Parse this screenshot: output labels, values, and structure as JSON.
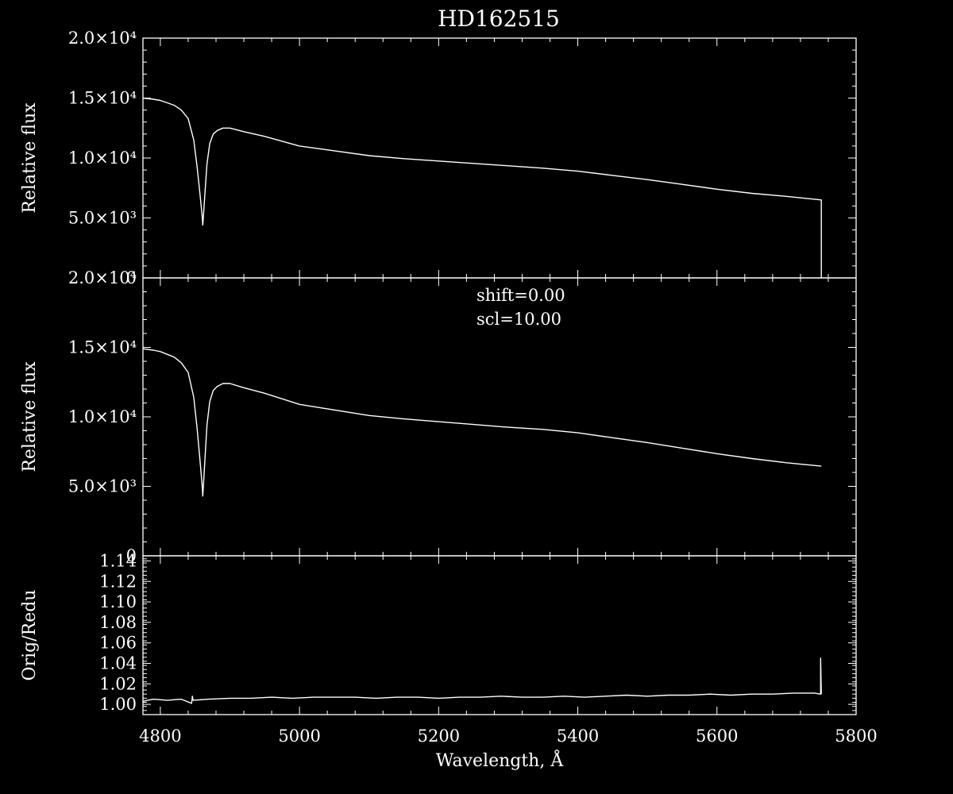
{
  "colors": {
    "background": "#000000",
    "foreground": "#ffffff"
  },
  "chart_data": [
    {
      "type": "line",
      "panel": "top",
      "title": "HD162515",
      "ylabel": "Relative flux",
      "xlim": [
        4775,
        5800
      ],
      "ylim": [
        0,
        20000
      ],
      "yticks": [
        {
          "value": 0,
          "label": "0"
        },
        {
          "value": 5000,
          "label": "5.0×10³"
        },
        {
          "value": 10000,
          "label": "1.0×10⁴"
        },
        {
          "value": 15000,
          "label": "1.5×10⁴"
        },
        {
          "value": 20000,
          "label": "2.0×10⁴"
        }
      ],
      "grid": false,
      "series": [
        {
          "x": [
            4775,
            4790,
            4800,
            4810,
            4820,
            4830,
            4840,
            4848,
            4853,
            4857,
            4860,
            4861,
            4862,
            4864,
            4867,
            4871,
            4876,
            4882,
            4890,
            4900,
            4920,
            4950,
            5000,
            5050,
            5100,
            5150,
            5200,
            5250,
            5300,
            5350,
            5400,
            5450,
            5500,
            5550,
            5600,
            5650,
            5700,
            5750,
            5750
          ],
          "y": [
            15000,
            14900,
            14800,
            14600,
            14400,
            14000,
            13300,
            11500,
            9200,
            7000,
            5200,
            4400,
            5200,
            7000,
            9500,
            11200,
            12000,
            12300,
            12500,
            12500,
            12200,
            11800,
            11000,
            10600,
            10200,
            9950,
            9750,
            9550,
            9350,
            9150,
            8900,
            8550,
            8200,
            7800,
            7400,
            7050,
            6800,
            6500,
            0
          ]
        }
      ]
    },
    {
      "type": "line",
      "panel": "middle",
      "ylabel": "Relative flux",
      "xlim": [
        4775,
        5800
      ],
      "ylim": [
        0,
        20000
      ],
      "yticks": [
        {
          "value": 0,
          "label": "0"
        },
        {
          "value": 5000,
          "label": "5.0×10³"
        },
        {
          "value": 10000,
          "label": "1.0×10⁴"
        },
        {
          "value": 15000,
          "label": "1.5×10⁴"
        },
        {
          "value": 20000,
          "label": "2.0×10⁴"
        }
      ],
      "annotations": [
        "shift=0.00",
        "scl=10.00"
      ],
      "grid": false,
      "series": [
        {
          "x": [
            4775,
            4790,
            4800,
            4810,
            4820,
            4830,
            4840,
            4848,
            4853,
            4857,
            4860,
            4861,
            4862,
            4864,
            4867,
            4871,
            4876,
            4882,
            4890,
            4900,
            4920,
            4950,
            5000,
            5050,
            5100,
            5150,
            5200,
            5250,
            5300,
            5350,
            5400,
            5450,
            5500,
            5550,
            5600,
            5650,
            5700,
            5750
          ],
          "y": [
            14900,
            14800,
            14700,
            14500,
            14300,
            13900,
            13200,
            11400,
            9100,
            6900,
            5100,
            4300,
            5100,
            6900,
            9400,
            11100,
            11900,
            12200,
            12400,
            12400,
            12100,
            11700,
            10900,
            10500,
            10100,
            9850,
            9650,
            9450,
            9250,
            9100,
            8850,
            8500,
            8150,
            7750,
            7350,
            7000,
            6700,
            6450
          ]
        }
      ]
    },
    {
      "type": "line",
      "panel": "bottom",
      "xlabel": "Wavelength, Å",
      "ylabel": "Orig/Redu",
      "xlim": [
        4775,
        5800
      ],
      "ylim": [
        0.99,
        1.145
      ],
      "xticks": [
        {
          "value": 4800,
          "label": "4800"
        },
        {
          "value": 5000,
          "label": "5000"
        },
        {
          "value": 5200,
          "label": "5200"
        },
        {
          "value": 5400,
          "label": "5400"
        },
        {
          "value": 5600,
          "label": "5600"
        },
        {
          "value": 5800,
          "label": "5800"
        }
      ],
      "yticks": [
        {
          "value": 1.0,
          "label": "1.00"
        },
        {
          "value": 1.02,
          "label": "1.02"
        },
        {
          "value": 1.04,
          "label": "1.04"
        },
        {
          "value": 1.06,
          "label": "1.06"
        },
        {
          "value": 1.08,
          "label": "1.08"
        },
        {
          "value": 1.1,
          "label": "1.10"
        },
        {
          "value": 1.12,
          "label": "1.12"
        },
        {
          "value": 1.14,
          "label": "1.14"
        }
      ],
      "grid": false,
      "series": [
        {
          "x": [
            4775,
            4790,
            4810,
            4830,
            4845,
            4846,
            4847,
            4870,
            4900,
            4930,
            4960,
            4990,
            5020,
            5050,
            5080,
            5110,
            5140,
            5170,
            5200,
            5230,
            5260,
            5290,
            5320,
            5350,
            5380,
            5410,
            5440,
            5470,
            5500,
            5530,
            5560,
            5590,
            5620,
            5650,
            5680,
            5710,
            5740,
            5749,
            5749,
            5750
          ],
          "y": [
            1.003,
            1.005,
            1.004,
            1.005,
            1.001,
            1.008,
            1.004,
            1.005,
            1.006,
            1.006,
            1.007,
            1.006,
            1.007,
            1.007,
            1.007,
            1.006,
            1.007,
            1.007,
            1.006,
            1.007,
            1.007,
            1.008,
            1.007,
            1.007,
            1.008,
            1.007,
            1.008,
            1.009,
            1.008,
            1.009,
            1.009,
            1.01,
            1.009,
            1.01,
            1.01,
            1.011,
            1.011,
            1.01,
            1.045,
            1.01
          ]
        }
      ]
    }
  ]
}
